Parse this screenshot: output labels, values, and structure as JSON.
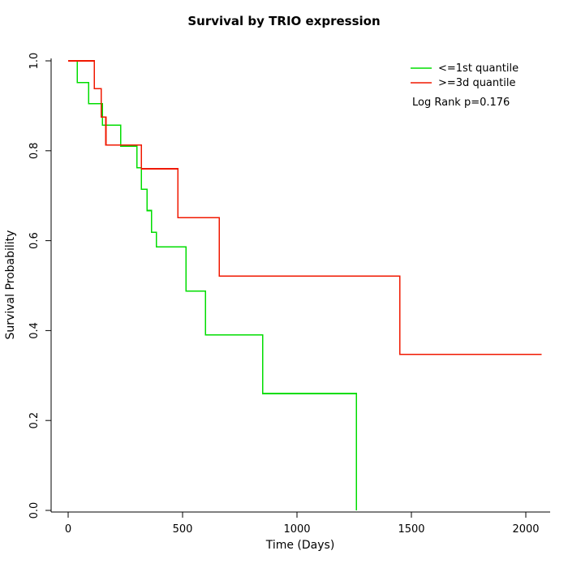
{
  "chart_data": {
    "type": "line",
    "subtype": "kaplan-meier-step",
    "title": "Survival by TRIO expression",
    "xlabel": "Time (Days)",
    "ylabel": "Survival Probability",
    "xlim": [
      0,
      2070
    ],
    "ylim": [
      0.0,
      1.0
    ],
    "xticks": [
      0,
      500,
      1000,
      1500,
      2000
    ],
    "xtick_labels": [
      "0",
      "500",
      "1000",
      "1500",
      "2000"
    ],
    "yticks": [
      0.0,
      0.2,
      0.4,
      0.6,
      0.8,
      1.0
    ],
    "ytick_labels": [
      "0.0",
      "0.2",
      "0.4",
      "0.6",
      "0.8",
      "1.0"
    ],
    "grid": false,
    "legend_position": "top-right",
    "annotation": "Log Rank p=0.176",
    "axis_color": "#000000",
    "series": [
      {
        "name": "<=1st quantile",
        "color": "#00dd00",
        "points": [
          [
            0,
            1.0
          ],
          [
            40,
            0.952
          ],
          [
            90,
            0.905
          ],
          [
            150,
            0.857
          ],
          [
            230,
            0.81
          ],
          [
            300,
            0.762
          ],
          [
            320,
            0.714
          ],
          [
            345,
            0.667
          ],
          [
            365,
            0.619
          ],
          [
            385,
            0.586
          ],
          [
            515,
            0.488
          ],
          [
            600,
            0.39
          ],
          [
            850,
            0.26
          ],
          [
            1260,
            0.0
          ]
        ]
      },
      {
        "name": ">=3d quantile",
        "color": "#f01800",
        "points": [
          [
            0,
            1.0
          ],
          [
            115,
            0.938
          ],
          [
            145,
            0.875
          ],
          [
            165,
            0.813
          ],
          [
            320,
            0.76
          ],
          [
            480,
            0.651
          ],
          [
            660,
            0.521
          ],
          [
            1450,
            0.347
          ],
          [
            2070,
            0.347
          ]
        ]
      }
    ]
  }
}
